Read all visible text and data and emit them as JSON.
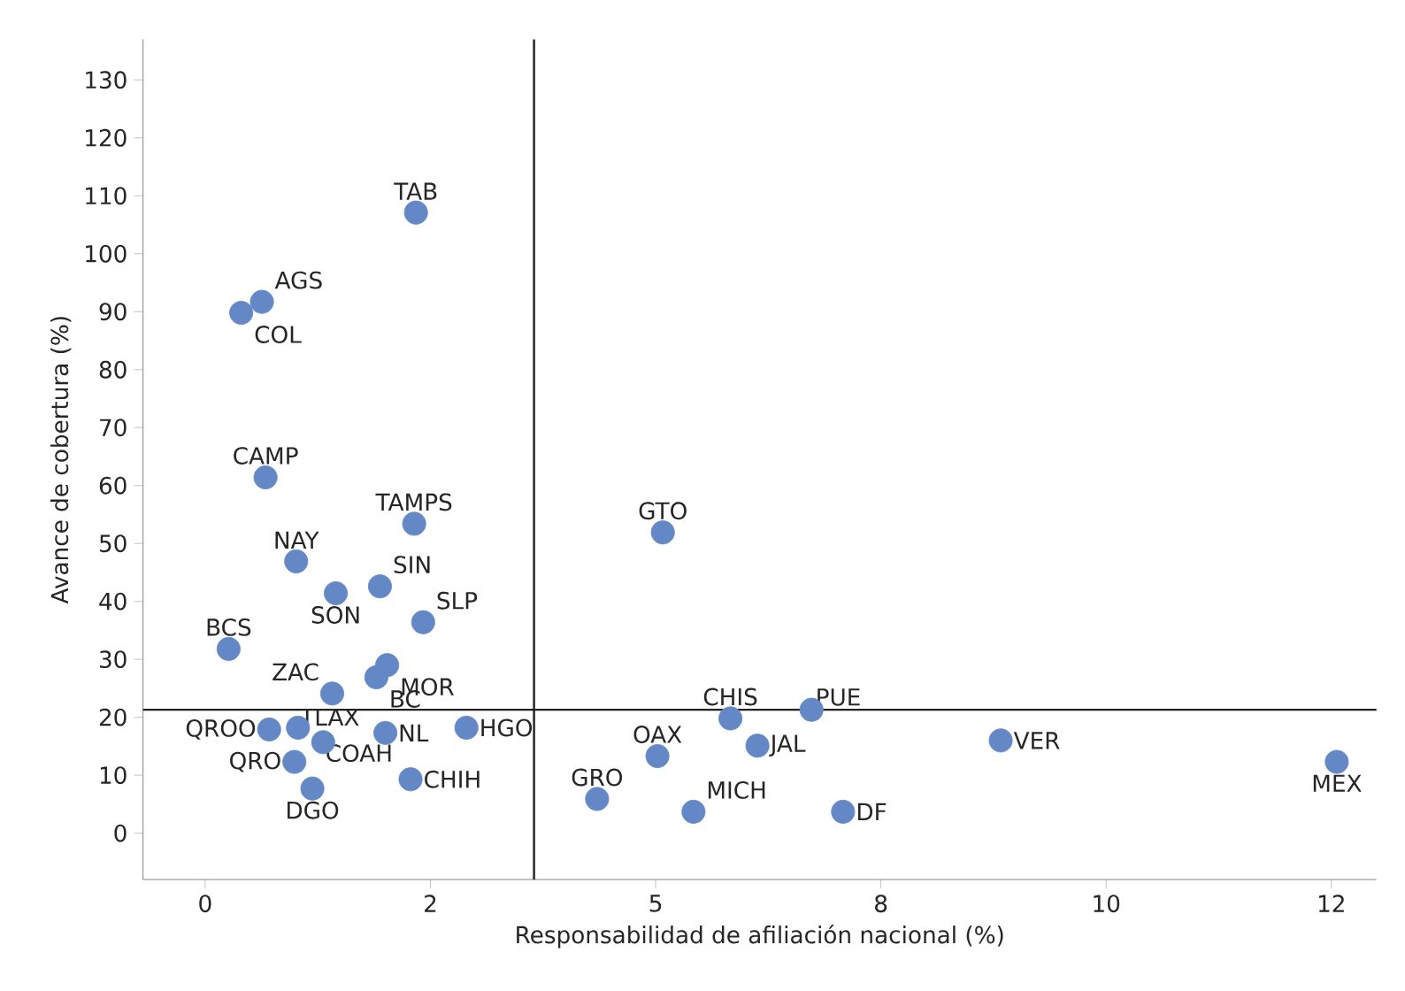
{
  "chart_data": {
    "type": "scatter",
    "xlabel": "Responsabilidad de afiliación nacional (%)",
    "ylabel": "Avance de cobertura (%)",
    "xlim": [
      -0.69,
      13.0
    ],
    "ylim": [
      -8,
      137
    ],
    "xticks": [
      {
        "value": 0,
        "label": "0"
      },
      {
        "value": 2.5,
        "label": "2"
      },
      {
        "value": 5,
        "label": "5"
      },
      {
        "value": 7.5,
        "label": "8"
      },
      {
        "value": 10,
        "label": "10"
      },
      {
        "value": 12.5,
        "label": "12"
      }
    ],
    "yticks": [
      0,
      10,
      20,
      30,
      40,
      50,
      60,
      70,
      80,
      90,
      100,
      110,
      120,
      130
    ],
    "grid": false,
    "ref_lines": [
      {
        "axis": "x",
        "value": 3.65,
        "color": "#231f20"
      },
      {
        "axis": "y",
        "value": 21.3,
        "color": "#231f20"
      }
    ],
    "series": [
      {
        "color": "#6488c6",
        "x": [
          2.34,
          0.63,
          0.4,
          0.67,
          2.32,
          1.01,
          1.94,
          1.45,
          2.42,
          0.26,
          2.02,
          1.9,
          1.41,
          1.03,
          0.71,
          2.0,
          2.9,
          0.99,
          1.31,
          1.19,
          2.28,
          5.08,
          4.35,
          5.02,
          5.42,
          5.83,
          6.73,
          6.13,
          7.08,
          8.83,
          12.56
        ],
        "values": [
          107.1,
          91.7,
          89.8,
          61.4,
          53.4,
          46.9,
          42.6,
          41.4,
          36.4,
          31.8,
          29.0,
          26.9,
          24.1,
          18.2,
          17.9,
          17.3,
          18.2,
          12.3,
          15.7,
          7.7,
          9.3,
          51.9,
          5.9,
          13.3,
          3.7,
          19.8,
          21.3,
          15.1,
          3.7,
          16.0,
          12.3
        ],
        "value_labels": [
          "TAB",
          "AGS",
          "COL",
          "CAMP",
          "TAMPS",
          "NAY",
          "SIN",
          "SON",
          "SLP",
          "BCS",
          "MOR",
          "BC",
          "ZAC",
          "TLAX",
          "QROO",
          "NL",
          "HGO",
          "QRO",
          "COAH",
          "DGO",
          "CHIH",
          "GTO",
          "GRO",
          "OAX",
          "MICH",
          "CHIS",
          "PUE",
          "JAL",
          "DF",
          "VER",
          "MEX"
        ]
      }
    ]
  }
}
